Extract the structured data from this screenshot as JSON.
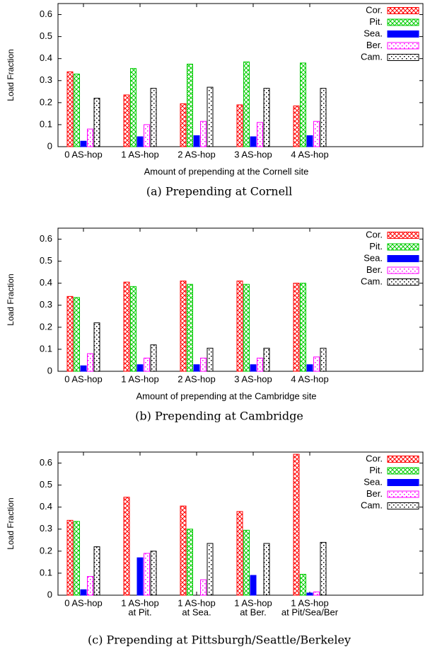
{
  "chart_data": [
    {
      "type": "bar",
      "title": "(a) Prepending at Cornell",
      "xlabel": "Amount of prepending at the Cornell site",
      "ylabel": "Load Fraction",
      "categories": [
        [
          "0 AS-hop"
        ],
        [
          "1 AS-hop"
        ],
        [
          "2 AS-hop"
        ],
        [
          "3 AS-hop"
        ],
        [
          "4 AS-hop"
        ]
      ],
      "series": [
        {
          "name": "Cor.",
          "color": "#ff0000",
          "pattern": "crosshatch",
          "values": [
            0.34,
            0.235,
            0.195,
            0.19,
            0.185
          ]
        },
        {
          "name": "Pit.",
          "color": "#00cc00",
          "pattern": "crosshatch",
          "values": [
            0.33,
            0.355,
            0.375,
            0.385,
            0.38
          ]
        },
        {
          "name": "Sea.",
          "color": "#0000ff",
          "pattern": "solid",
          "values": [
            0.025,
            0.045,
            0.05,
            0.045,
            0.05
          ]
        },
        {
          "name": "Ber.",
          "color": "#ff00ff",
          "pattern": "dots",
          "values": [
            0.08,
            0.1,
            0.115,
            0.11,
            0.115
          ]
        },
        {
          "name": "Cam.",
          "color": "#000000",
          "pattern": "dots",
          "values": [
            0.22,
            0.265,
            0.27,
            0.265,
            0.265
          ]
        }
      ],
      "ylim": [
        0,
        0.65
      ],
      "yticks": [
        0,
        0.1,
        0.2,
        0.3,
        0.4,
        0.5,
        0.6
      ],
      "legend": "upper right"
    },
    {
      "type": "bar",
      "title": "(b) Prepending at Cambridge",
      "xlabel": "Amount of prepending at the Cambridge site",
      "ylabel": "Load Fraction",
      "categories": [
        [
          "0 AS-hop"
        ],
        [
          "1 AS-hop"
        ],
        [
          "2 AS-hop"
        ],
        [
          "3 AS-hop"
        ],
        [
          "4 AS-hop"
        ]
      ],
      "series": [
        {
          "name": "Cor.",
          "color": "#ff0000",
          "pattern": "crosshatch",
          "values": [
            0.34,
            0.405,
            0.41,
            0.41,
            0.4
          ]
        },
        {
          "name": "Pit.",
          "color": "#00cc00",
          "pattern": "crosshatch",
          "values": [
            0.335,
            0.385,
            0.395,
            0.395,
            0.4
          ]
        },
        {
          "name": "Sea.",
          "color": "#0000ff",
          "pattern": "solid",
          "values": [
            0.025,
            0.03,
            0.03,
            0.03,
            0.03
          ]
        },
        {
          "name": "Ber.",
          "color": "#ff00ff",
          "pattern": "dots",
          "values": [
            0.08,
            0.06,
            0.06,
            0.06,
            0.065
          ]
        },
        {
          "name": "Cam.",
          "color": "#000000",
          "pattern": "dots",
          "values": [
            0.22,
            0.12,
            0.105,
            0.105,
            0.105
          ]
        }
      ],
      "ylim": [
        0,
        0.65
      ],
      "yticks": [
        0,
        0.1,
        0.2,
        0.3,
        0.4,
        0.5,
        0.6
      ],
      "legend": "upper right"
    },
    {
      "type": "bar",
      "title": "(c) Prepending at Pittsburgh/Seattle/Berkeley",
      "ylabel": "Load Fraction",
      "categories": [
        [
          "0 AS-hop"
        ],
        [
          "1 AS-hop",
          "at Pit."
        ],
        [
          "1 AS-hop",
          "at Sea."
        ],
        [
          "1 AS-hop",
          "at Ber."
        ],
        [
          "1 AS-hop",
          "at Pit/Sea/Ber"
        ]
      ],
      "series": [
        {
          "name": "Cor.",
          "color": "#ff0000",
          "pattern": "crosshatch",
          "values": [
            0.34,
            0.445,
            0.405,
            0.38,
            0.64
          ]
        },
        {
          "name": "Pit.",
          "color": "#00cc00",
          "pattern": "crosshatch",
          "values": [
            0.335,
            0,
            0.3,
            0.295,
            0.095
          ]
        },
        {
          "name": "Sea.",
          "color": "#0000ff",
          "pattern": "solid",
          "values": [
            0.025,
            0.17,
            0,
            0.09,
            0.01
          ]
        },
        {
          "name": "Ber.",
          "color": "#ff00ff",
          "pattern": "dots",
          "values": [
            0.085,
            0.19,
            0.07,
            0,
            0.015
          ]
        },
        {
          "name": "Cam.",
          "color": "#000000",
          "pattern": "dots",
          "values": [
            0.22,
            0.2,
            0.235,
            0.235,
            0.24
          ]
        }
      ],
      "ylim": [
        0,
        0.65
      ],
      "yticks": [
        0,
        0.1,
        0.2,
        0.3,
        0.4,
        0.5,
        0.6
      ],
      "legend": "upper right"
    }
  ]
}
